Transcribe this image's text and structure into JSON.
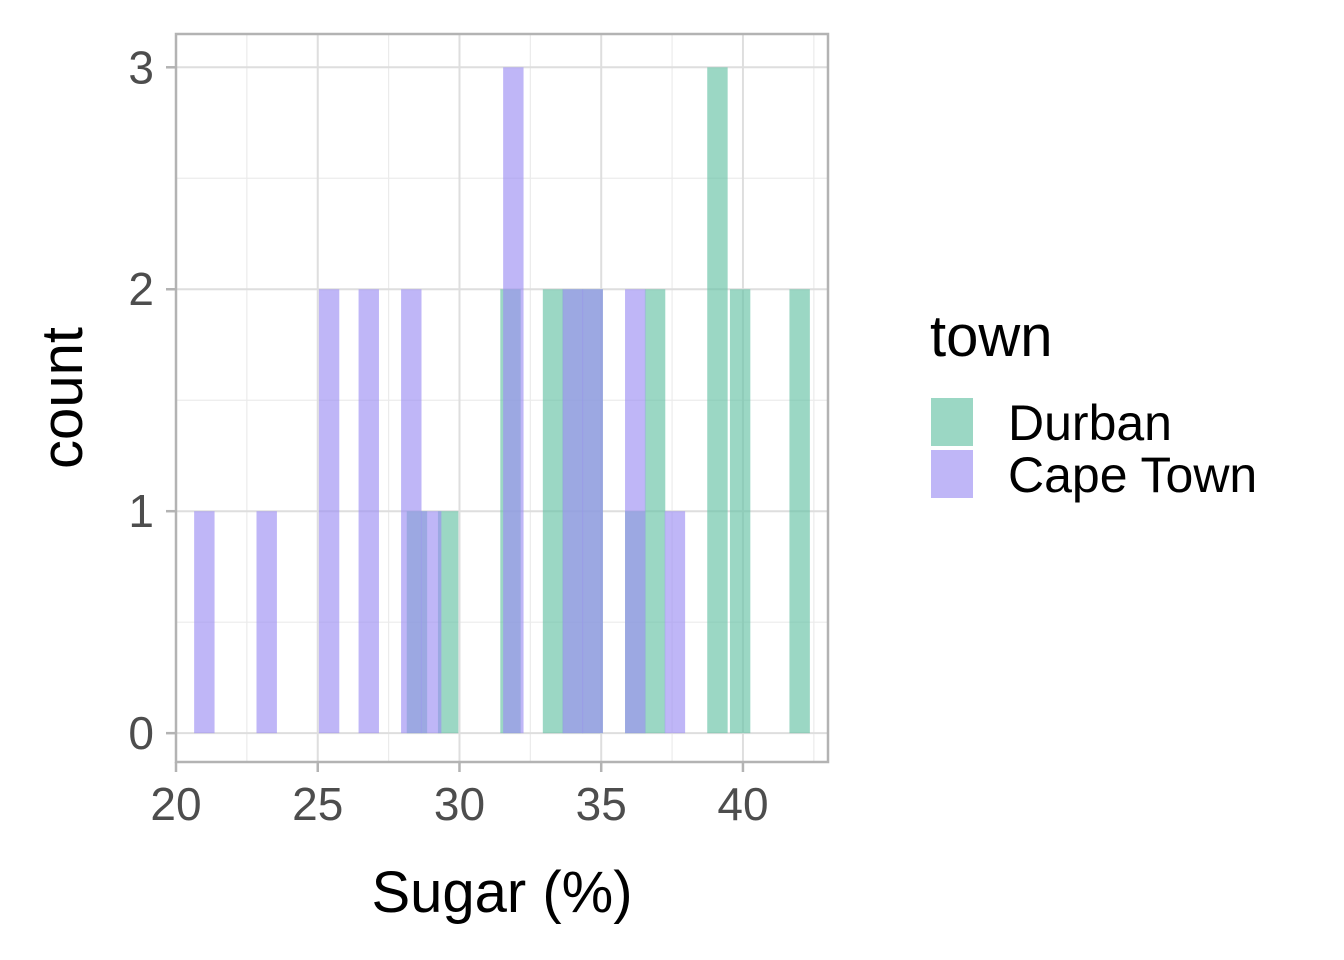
{
  "chart_data": {
    "type": "bar",
    "subtype": "histogram",
    "title": "",
    "xlabel": "Sugar (%)",
    "ylabel": "count",
    "xlim": [
      20,
      43
    ],
    "ylim": [
      -0.13,
      3.15
    ],
    "x_ticks": [
      20,
      25,
      30,
      35,
      40
    ],
    "y_ticks": [
      0,
      1,
      2,
      3
    ],
    "grid": true,
    "legend": {
      "title": "town",
      "placement": "right"
    },
    "bin_width": 0.72,
    "series": [
      {
        "name": "Durban",
        "color": "#66c2a5",
        "opacity": 0.65,
        "bins": [
          {
            "x": 28.5,
            "count": 1
          },
          {
            "x": 29.6,
            "count": 1
          },
          {
            "x": 31.8,
            "count": 2
          },
          {
            "x": 33.3,
            "count": 2
          },
          {
            "x": 34.0,
            "count": 2
          },
          {
            "x": 34.7,
            "count": 2
          },
          {
            "x": 36.2,
            "count": 1
          },
          {
            "x": 36.9,
            "count": 2
          },
          {
            "x": 39.1,
            "count": 3
          },
          {
            "x": 39.9,
            "count": 2
          },
          {
            "x": 42.0,
            "count": 2
          }
        ]
      },
      {
        "name": "Cape Town",
        "color": "#9d8ff2",
        "opacity": 0.65,
        "bins": [
          {
            "x": 21.0,
            "count": 1
          },
          {
            "x": 23.2,
            "count": 1
          },
          {
            "x": 25.4,
            "count": 2
          },
          {
            "x": 26.8,
            "count": 2
          },
          {
            "x": 28.3,
            "count": 2
          },
          {
            "x": 29.0,
            "count": 1
          },
          {
            "x": 31.9,
            "count": 3
          },
          {
            "x": 34.0,
            "count": 2
          },
          {
            "x": 34.7,
            "count": 2
          },
          {
            "x": 36.2,
            "count": 2
          },
          {
            "x": 37.6,
            "count": 1
          }
        ]
      }
    ]
  }
}
